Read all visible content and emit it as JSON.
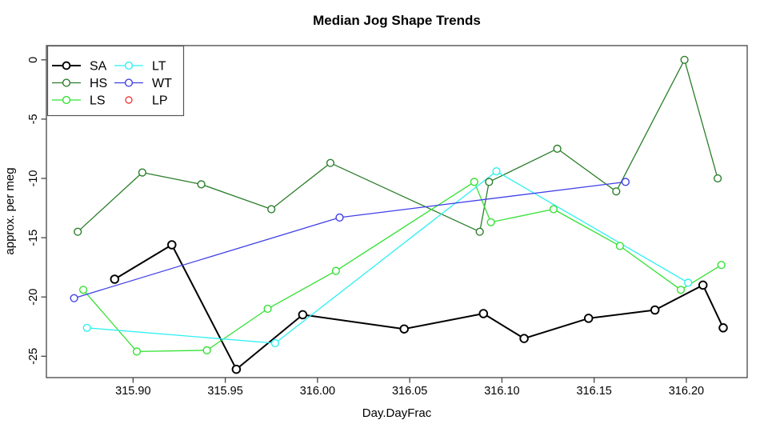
{
  "figure": {
    "title": "Median Jog Shape Trends",
    "xlabel": "Day.DayFrac",
    "ylabel": "approx. per meg"
  },
  "chart_data": {
    "type": "line",
    "title": "Median Jog Shape Trends",
    "xlabel": "Day.DayFrac",
    "ylabel": "approx. per meg",
    "xlim": [
      315.853,
      316.233
    ],
    "ylim": [
      -26.8,
      1.2
    ],
    "grid": false,
    "legend_position": "topleft",
    "axis_color": "#444444",
    "x_ticks": {
      "values": [
        315.9,
        315.95,
        316.0,
        316.05,
        316.1,
        316.15,
        316.2
      ],
      "labels": [
        "315.90",
        "315.95",
        "316.00",
        "316.05",
        "316.10",
        "316.15",
        "316.20"
      ]
    },
    "y_ticks": {
      "values": [
        0,
        -5,
        -10,
        -15,
        -20,
        -25
      ],
      "labels": [
        "0",
        "-5",
        "-10",
        "-15",
        "-20",
        "-25"
      ]
    },
    "series": [
      {
        "name": "SA",
        "color": "#000000",
        "line_width": 2.0,
        "marker": "open-circle",
        "has_line": true,
        "points": [
          [
            315.89,
            -18.5
          ],
          [
            315.921,
            -15.6
          ],
          [
            315.956,
            -26.1
          ],
          [
            315.992,
            -21.5
          ],
          [
            316.047,
            -22.7
          ],
          [
            316.09,
            -21.4
          ],
          [
            316.112,
            -23.5
          ],
          [
            316.147,
            -21.8
          ],
          [
            316.183,
            -21.1
          ],
          [
            316.209,
            -19.0
          ],
          [
            316.22,
            -22.6
          ]
        ]
      },
      {
        "name": "HS",
        "color": "#2a7e2a",
        "line_width": 1.3,
        "marker": "open-circle",
        "has_line": true,
        "points": [
          [
            315.87,
            -14.5
          ],
          [
            315.905,
            -9.5
          ],
          [
            315.937,
            -10.5
          ],
          [
            315.975,
            -12.6
          ],
          [
            316.007,
            -8.7
          ],
          [
            316.088,
            -14.5
          ],
          [
            316.093,
            -10.3
          ],
          [
            316.13,
            -7.5
          ],
          [
            316.162,
            -11.1
          ],
          [
            316.199,
            0.0
          ],
          [
            316.217,
            -10.0
          ]
        ]
      },
      {
        "name": "LS",
        "color": "#33e233",
        "line_width": 1.3,
        "marker": "open-circle",
        "has_line": true,
        "points": [
          [
            315.873,
            -19.4
          ],
          [
            315.902,
            -24.6
          ],
          [
            315.94,
            -24.5
          ],
          [
            315.973,
            -21.0
          ],
          [
            316.01,
            -17.8
          ],
          [
            316.085,
            -10.3
          ],
          [
            316.094,
            -13.7
          ],
          [
            316.128,
            -12.6
          ],
          [
            316.164,
            -15.7
          ],
          [
            316.197,
            -19.4
          ],
          [
            316.219,
            -17.3
          ]
        ]
      },
      {
        "name": "LT",
        "color": "#2ff0f0",
        "line_width": 1.3,
        "marker": "open-circle",
        "has_line": true,
        "points": [
          [
            315.875,
            -22.6
          ],
          [
            315.977,
            -23.9
          ],
          [
            316.097,
            -9.4
          ],
          [
            316.201,
            -18.8
          ]
        ]
      },
      {
        "name": "WT",
        "color": "#4040e8",
        "line_width": 1.3,
        "marker": "open-circle",
        "has_line": true,
        "points": [
          [
            315.868,
            -20.1
          ],
          [
            316.012,
            -13.3
          ],
          [
            316.167,
            -10.3
          ]
        ]
      },
      {
        "name": "LP",
        "color": "#f04040",
        "line_width": 1.3,
        "marker": "open-circle",
        "has_line": false,
        "points": []
      }
    ],
    "legend": {
      "columns": 2,
      "order": [
        "SA",
        "HS",
        "LS",
        "LT",
        "WT",
        "LP"
      ]
    }
  }
}
